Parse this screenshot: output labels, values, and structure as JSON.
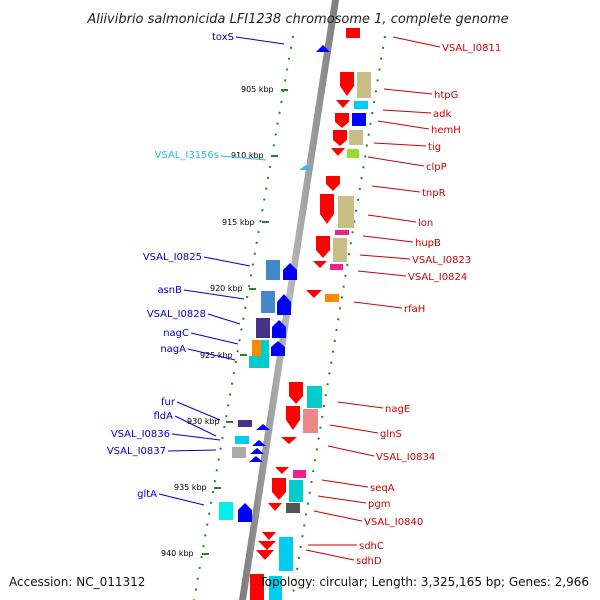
{
  "title": "Aliivibrio salmonicida LFI1238 chromosome 1, complete genome",
  "accession_text": "Accession: NC_011312",
  "topology_text": "Topology: circular; Length: 3,325,165 bp; Genes: 2,966",
  "colors": {
    "forward_gene": "#ff0000",
    "reverse_gene": "#0000ff",
    "rna_gene": "#33bbee",
    "backbone": "#9a9a9a",
    "tick_mark": "#2e7d32"
  },
  "kbp_ticks": [
    {
      "label": "905 kbp",
      "value": 905
    },
    {
      "label": "910 kbp",
      "value": 910
    },
    {
      "label": "915 kbp",
      "value": 915
    },
    {
      "label": "920 kbp",
      "value": 920
    },
    {
      "label": "925 kbp",
      "value": 925
    },
    {
      "label": "930 kbp",
      "value": 930
    },
    {
      "label": "935 kbp",
      "value": 935
    },
    {
      "label": "940 kbp",
      "value": 940
    }
  ],
  "genes_reverse": [
    {
      "name": "toxS",
      "color": "#0000cc"
    },
    {
      "name": "VSAL_I3156s",
      "color": "#22bbee"
    },
    {
      "name": "VSAL_I0825",
      "color": "#0000cc"
    },
    {
      "name": "asnB",
      "color": "#0000cc"
    },
    {
      "name": "VSAL_I0828",
      "color": "#0000cc"
    },
    {
      "name": "nagC",
      "color": "#0000cc"
    },
    {
      "name": "nagA",
      "color": "#0000cc"
    },
    {
      "name": "fur",
      "color": "#0000cc"
    },
    {
      "name": "fldA",
      "color": "#0000cc"
    },
    {
      "name": "VSAL_I0836",
      "color": "#0000cc"
    },
    {
      "name": "VSAL_I0837",
      "color": "#0000cc"
    },
    {
      "name": "gltA",
      "color": "#0000cc"
    }
  ],
  "genes_forward": [
    {
      "name": "VSAL_I0811"
    },
    {
      "name": "htpG"
    },
    {
      "name": "adk"
    },
    {
      "name": "hemH"
    },
    {
      "name": "tig"
    },
    {
      "name": "clpP"
    },
    {
      "name": "tnpR"
    },
    {
      "name": "lon"
    },
    {
      "name": "hupB"
    },
    {
      "name": "VSAL_I0823"
    },
    {
      "name": "VSAL_I0824"
    },
    {
      "name": "rfaH"
    },
    {
      "name": "nagE"
    },
    {
      "name": "glnS"
    },
    {
      "name": "VSAL_I0834"
    },
    {
      "name": "seqA"
    },
    {
      "name": "pgm"
    },
    {
      "name": "VSAL_I0840"
    },
    {
      "name": "sdhC"
    },
    {
      "name": "sdhD"
    }
  ]
}
